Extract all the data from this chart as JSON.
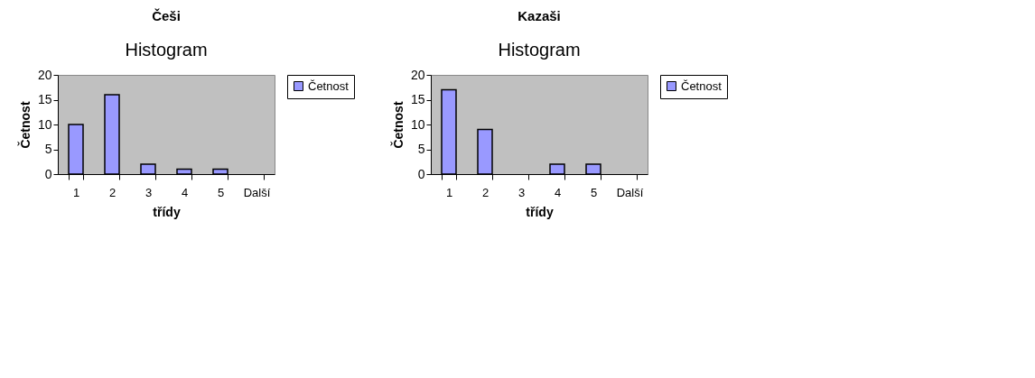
{
  "chart_data": [
    {
      "type": "bar",
      "title": "Češi",
      "subtitle": "Histogram",
      "xlabel": "třídy",
      "ylabel": "Četnost",
      "categories": [
        "1",
        "2",
        "3",
        "4",
        "5",
        "Další"
      ],
      "series": [
        {
          "name": "Četnost",
          "color": "#9999ff",
          "values": [
            10,
            16,
            2,
            1,
            1,
            0
          ]
        }
      ],
      "ylim": [
        0,
        20
      ],
      "yticks": [
        0,
        5,
        10,
        15,
        20
      ],
      "legend": "right"
    },
    {
      "type": "bar",
      "title": "Kazaši",
      "subtitle": "Histogram",
      "xlabel": "třídy",
      "ylabel": "Četnost",
      "categories": [
        "1",
        "2",
        "3",
        "4",
        "5",
        "Další"
      ],
      "series": [
        {
          "name": "Četnost",
          "color": "#9999ff",
          "values": [
            17,
            9,
            0,
            2,
            2,
            0
          ]
        }
      ],
      "ylim": [
        0,
        20
      ],
      "yticks": [
        0,
        5,
        10,
        15,
        20
      ],
      "legend": "right"
    }
  ]
}
